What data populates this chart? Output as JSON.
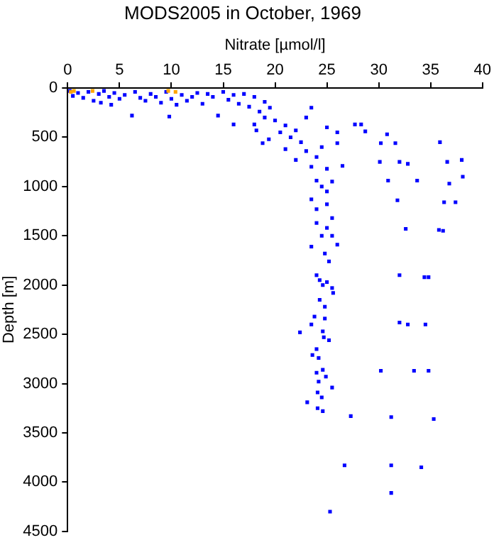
{
  "chart_data": {
    "type": "scatter",
    "title": "MODS2005 in October, 1969",
    "xlabel": "Nitrate [µmol/l]",
    "ylabel": "Depth [m]",
    "xlim": [
      0,
      40
    ],
    "xticks": [
      0,
      5,
      10,
      15,
      20,
      25,
      30,
      35,
      40
    ],
    "ylim": [
      4500,
      0
    ],
    "yticks": [
      0,
      500,
      1000,
      1500,
      2000,
      2500,
      3000,
      3500,
      4000,
      4500
    ],
    "grid": false,
    "legend": false,
    "marker": "square",
    "series": [
      {
        "color": "#0000ff",
        "x": [
          0.2,
          0.5,
          1,
          1.5,
          2,
          2.5,
          3,
          3.2,
          3.5,
          4,
          4.2,
          4.5,
          5,
          5.5,
          6.2,
          6.5,
          7,
          7.5,
          8,
          8.5,
          9,
          9.5,
          9.8,
          10,
          10.5,
          11,
          11.5,
          12,
          12.5,
          13,
          13.5,
          14,
          14.5,
          15,
          15.5,
          16,
          16.5,
          16,
          17,
          17.5,
          18,
          18,
          18.5,
          19,
          19,
          19.5,
          18.2,
          18.8,
          19.4,
          20,
          20.5,
          21,
          21,
          21.5,
          22,
          22,
          22.5,
          23,
          23,
          23.5,
          23.5,
          23.5,
          24,
          24,
          24,
          24.5,
          25,
          25,
          25,
          26,
          26,
          26.5,
          25.5,
          25,
          24.5,
          25.5,
          24,
          24.5,
          25,
          23.5,
          25.5,
          26,
          24.8,
          25.2,
          24,
          24.3,
          24.6,
          25,
          25.5,
          25.6,
          24.3,
          24.8,
          23.8,
          24.8,
          23.5,
          22.4,
          24.6,
          24.7,
          25.2,
          24,
          24.2,
          23.6,
          24.6,
          24,
          24.9,
          24.2,
          25.5,
          24.1,
          24.5,
          23.1,
          24.1,
          24.6,
          27.7,
          28.3,
          28.7,
          30.8,
          30.2,
          31.6,
          35.9,
          30.1,
          32,
          32.8,
          36.6,
          38,
          38.1,
          30.9,
          33.7,
          36.8,
          31.8,
          36.3,
          37.4,
          32.6,
          35.8,
          36.2,
          32,
          34.4,
          34.8,
          32,
          32.8,
          34.5,
          30.2,
          33.4,
          34.8,
          27.3,
          31.2,
          35.3,
          26.7,
          31.2,
          34.1,
          31.2,
          25.3
        ],
        "values": [
          30,
          80,
          50,
          100,
          40,
          130,
          60,
          150,
          30,
          90,
          170,
          50,
          110,
          70,
          280,
          40,
          100,
          130,
          60,
          90,
          150,
          40,
          290,
          110,
          170,
          70,
          130,
          90,
          50,
          160,
          60,
          90,
          280,
          40,
          120,
          70,
          160,
          370,
          60,
          190,
          90,
          370,
          240,
          140,
          300,
          200,
          430,
          560,
          520,
          330,
          450,
          380,
          620,
          500,
          430,
          730,
          550,
          300,
          640,
          200,
          800,
          1130,
          940,
          700,
          1230,
          600,
          400,
          1050,
          820,
          450,
          560,
          790,
          1320,
          1180,
          1000,
          950,
          1370,
          1500,
          1420,
          1610,
          1500,
          1590,
          1680,
          1760,
          1900,
          1950,
          2000,
          1970,
          2030,
          2080,
          2150,
          2220,
          2320,
          2340,
          2400,
          2480,
          2470,
          2530,
          2560,
          2650,
          2740,
          2710,
          2860,
          2890,
          2930,
          2980,
          3040,
          3090,
          3140,
          3190,
          3250,
          3280,
          370,
          370,
          440,
          470,
          560,
          560,
          550,
          750,
          750,
          770,
          750,
          730,
          900,
          940,
          940,
          970,
          1140,
          1160,
          1160,
          1430,
          1440,
          1450,
          1900,
          1920,
          1920,
          2380,
          2400,
          2400,
          2870,
          2870,
          2870,
          3330,
          3340,
          3360,
          3830,
          3830,
          3850,
          4110,
          4300
        ]
      },
      {
        "color": "#ffa500",
        "x": [
          0.3,
          0.6,
          2.4,
          9.7,
          10.4
        ],
        "values": [
          40,
          30,
          30,
          30,
          40
        ]
      }
    ]
  }
}
